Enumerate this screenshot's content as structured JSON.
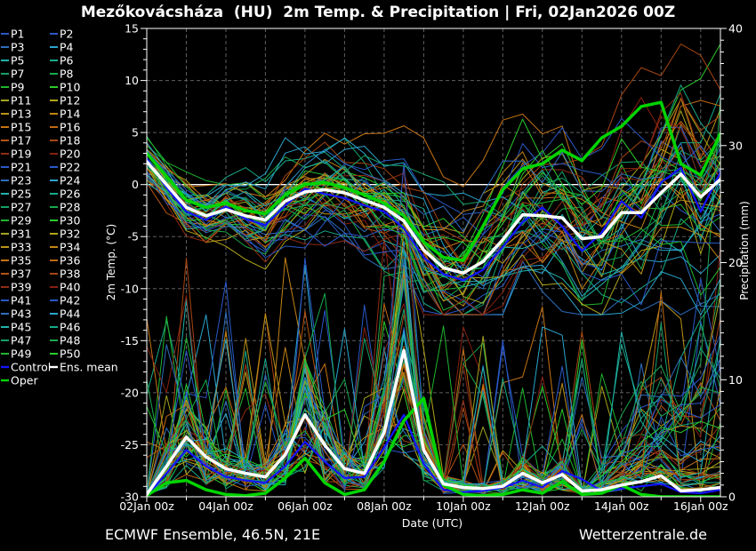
{
  "title": "Mezőkovácsháza  (HU)  2m Temp. & Precipitation | Fri, 02Jan2026 00Z",
  "footer": {
    "left": "ECMWF Ensemble, 46.5N, 21E",
    "right": "Wetterzentrale.de"
  },
  "colors": {
    "background": "#000000",
    "frame": "#ffffff",
    "grid": "#5f5f5f",
    "text": "#ffffff",
    "control": "#1414ff",
    "ens_mean": "#ffffff",
    "oper": "#00d400",
    "member_palette": [
      "#2a59c8",
      "#2a59c8",
      "#2d6ec0",
      "#2aa5ce",
      "#1fb3ab",
      "#16ab8a",
      "#13a167",
      "#18a84d",
      "#1fb52e",
      "#2bcb2b",
      "#a6a61d",
      "#b2a617",
      "#bb9418",
      "#c38414",
      "#c77413",
      "#bf6912",
      "#b55512",
      "#a74611",
      "#902c12",
      "#86210f"
    ]
  },
  "legend": {
    "members": [
      "P1",
      "P2",
      "P3",
      "P4",
      "P5",
      "P6",
      "P7",
      "P8",
      "P9",
      "P10",
      "P11",
      "P12",
      "P13",
      "P14",
      "P15",
      "P16",
      "P17",
      "P18",
      "P19",
      "P20",
      "P21",
      "P22",
      "P23",
      "P24",
      "P25",
      "P26",
      "P27",
      "P28",
      "P29",
      "P30",
      "P31",
      "P32",
      "P33",
      "P34",
      "P35",
      "P36",
      "P37",
      "P38",
      "P39",
      "P40",
      "P41",
      "P42",
      "P43",
      "P44",
      "P45",
      "P46",
      "P47",
      "P48",
      "P49",
      "P50"
    ],
    "specials": [
      {
        "label": "Control",
        "color_key": "control"
      },
      {
        "label": "Ens. mean",
        "color_key": "ens_mean"
      },
      {
        "label": "Oper",
        "color_key": "oper"
      }
    ]
  },
  "chart_data": {
    "type": "line",
    "title": "Mezőkovácsháza  (HU)  2m Temp. & Precipitation | Fri, 02Jan2026 00Z",
    "x_axis": {
      "label": "Date (UTC)",
      "tick_labels": [
        "02Jan 00z",
        "04Jan 00z",
        "06Jan 00z",
        "08Jan 00z",
        "10Jan 00z",
        "12Jan 00z",
        "14Jan 00z",
        "16Jan 00z"
      ],
      "tick_days": [
        0,
        2,
        4,
        6,
        8,
        10,
        12,
        14
      ],
      "range_days": [
        0,
        14.5
      ],
      "grid": "daily dashed vertical lines"
    },
    "y_left": {
      "label": "2m Temp. (°C)",
      "range": [
        -30,
        15
      ],
      "major_ticks": [
        -30,
        -25,
        -20,
        -15,
        -10,
        -5,
        0,
        5,
        10,
        15
      ],
      "zero_line": "solid white",
      "grid": "dashed at 5 degree steps"
    },
    "y_right": {
      "label": "Precipitation (mm)",
      "range": [
        0,
        40
      ],
      "major_ticks": [
        0,
        10,
        20,
        30,
        40
      ]
    },
    "time_start": "02Jan2026 00Z",
    "time_step_hours": 12,
    "n_points": 30,
    "series": [
      {
        "id": "ens_mean_temp",
        "name": "Ens. mean",
        "axis": "temp",
        "width": 3.5,
        "values": [
          2.2,
          0.0,
          -2.2,
          -3.0,
          -2.4,
          -3.0,
          -3.4,
          -1.6,
          -0.7,
          -0.5,
          -0.8,
          -1.5,
          -2.2,
          -3.5,
          -6.3,
          -8.0,
          -8.5,
          -7.4,
          -5.3,
          -2.9,
          -3.0,
          -3.2,
          -5.2,
          -5.0,
          -2.7,
          -2.7,
          -0.8,
          1.0,
          -1.2,
          0.5
        ]
      },
      {
        "id": "oper_temp",
        "name": "Oper",
        "axis": "temp",
        "width": 3.5,
        "values": [
          3.0,
          0.8,
          -1.5,
          -2.2,
          -1.8,
          -2.5,
          -2.8,
          -1.0,
          0.0,
          0.2,
          -0.3,
          -1.0,
          -1.8,
          -3.0,
          -5.5,
          -7.0,
          -7.3,
          -4.0,
          -0.5,
          1.5,
          2.0,
          3.3,
          2.3,
          4.5,
          5.6,
          7.5,
          7.9,
          2.0,
          0.9,
          4.9
        ]
      },
      {
        "id": "control_temp",
        "name": "Control",
        "axis": "temp",
        "width": 2.2,
        "values": [
          2.5,
          -0.3,
          -2.6,
          -3.4,
          -2.1,
          -3.3,
          -3.9,
          -2.0,
          -0.4,
          -0.9,
          -1.3,
          -2.0,
          -2.6,
          -4.2,
          -7.0,
          -8.6,
          -9.2,
          -8.2,
          -6.0,
          -3.6,
          -2.2,
          -4.0,
          -6.4,
          -4.6,
          -1.6,
          -3.2,
          0.2,
          1.6,
          -2.6,
          1.2
        ]
      },
      {
        "id": "ens_mean_precip",
        "name": "Ens. mean",
        "axis": "precip",
        "width": 3.5,
        "values": [
          0.2,
          2.6,
          5.1,
          3.4,
          2.4,
          2.0,
          1.7,
          3.6,
          7.0,
          4.4,
          2.4,
          2.0,
          5.5,
          12.5,
          4.0,
          1.1,
          0.8,
          0.7,
          0.9,
          2.0,
          1.2,
          1.9,
          0.5,
          0.6,
          1.0,
          1.3,
          1.8,
          0.5,
          0.6,
          0.8
        ]
      },
      {
        "id": "control_precip",
        "name": "Control",
        "axis": "precip",
        "width": 2.2,
        "values": [
          0.1,
          2.0,
          4.0,
          2.6,
          1.7,
          1.4,
          1.2,
          2.6,
          4.7,
          3.0,
          1.6,
          1.7,
          4.2,
          7.0,
          2.8,
          0.6,
          0.4,
          0.5,
          0.8,
          1.4,
          0.8,
          2.2,
          1.5,
          0.5,
          0.7,
          0.9,
          1.1,
          0.4,
          0.3,
          0.6
        ]
      },
      {
        "id": "oper_precip",
        "name": "Oper",
        "axis": "precip",
        "width": 3.5,
        "values": [
          0.1,
          1.2,
          1.4,
          0.6,
          0.2,
          0.1,
          0.3,
          1.6,
          3.3,
          1.2,
          0.2,
          0.6,
          3.0,
          6.5,
          8.4,
          1.0,
          0.2,
          0.1,
          0.2,
          0.6,
          0.3,
          1.3,
          0.2,
          0.3,
          1.0,
          0.2,
          0.0,
          0.0,
          0.0,
          0.0
        ]
      }
    ],
    "ensemble": {
      "member_count": 50,
      "palette_cycle": 20,
      "temp_start_range": [
        0.3,
        3.7
      ],
      "temp_end_range": [
        -10,
        9
      ],
      "precip_spike_maxima_mm": {
        "03Jan": 13,
        "06Jan": 14,
        "08Jan12z": 16,
        "14-16Jan_fan": 30
      }
    }
  }
}
